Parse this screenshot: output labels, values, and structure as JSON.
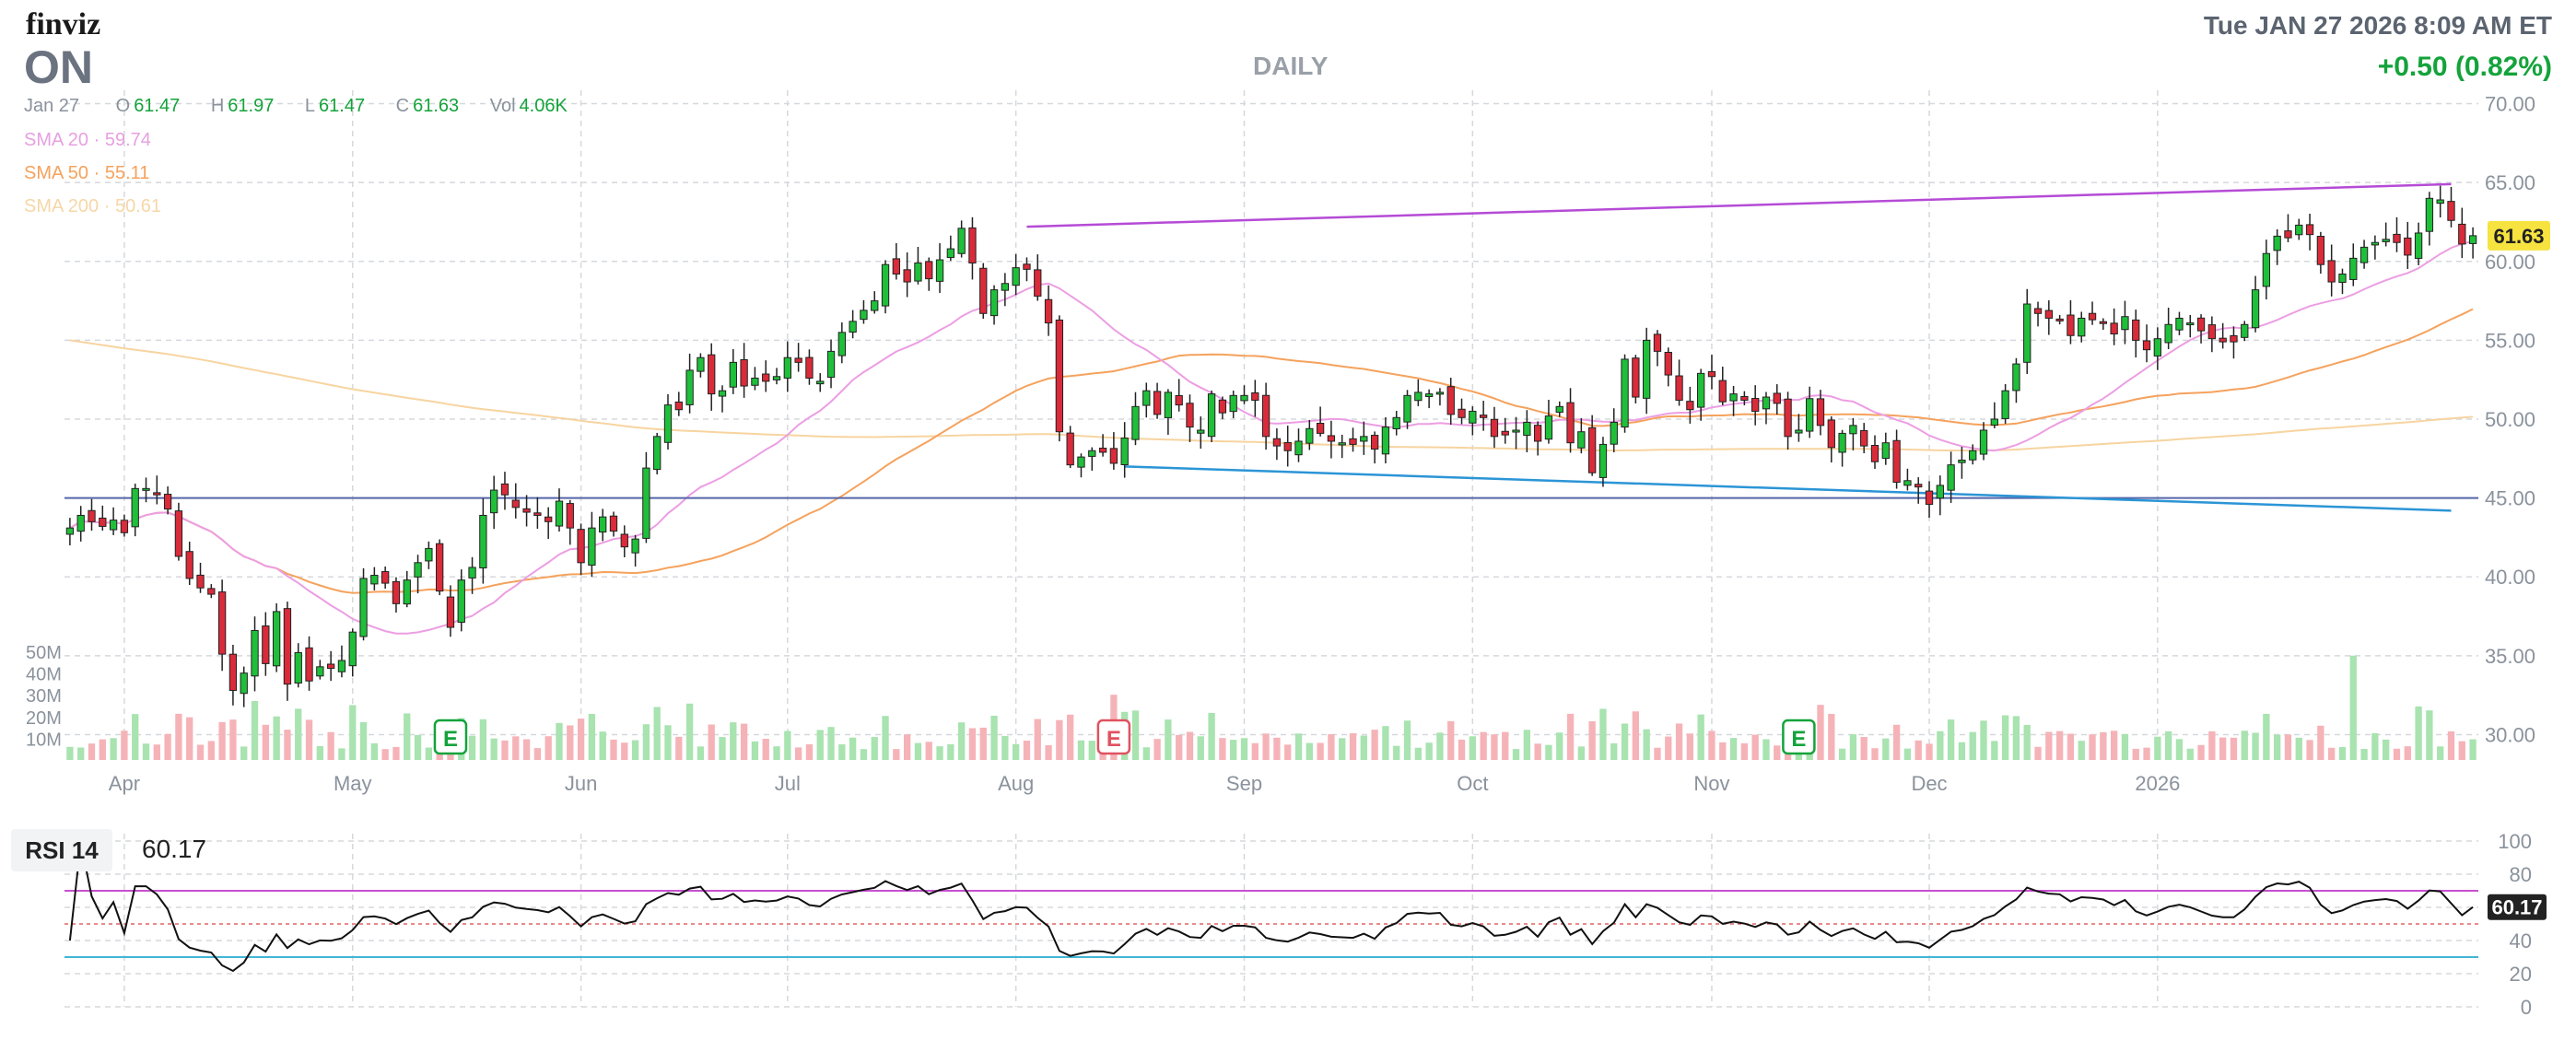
{
  "header": {
    "logo": "finviz",
    "ticker": "ON",
    "period": "DAILY",
    "datetime": "Tue JAN 27 2026 8:09 AM ET",
    "change": "+0.50 (0.82%)"
  },
  "ohlc": {
    "date": "Jan 27",
    "open_key": "O",
    "open": "61.47",
    "high_key": "H",
    "high": "61.97",
    "low_key": "L",
    "low": "61.47",
    "close_key": "C",
    "close": "61.63",
    "vol_key": "Vol",
    "vol": "4.06K"
  },
  "sma_legend": [
    {
      "label": "SMA 20",
      "value": "59.74",
      "color": "#e6a0e0"
    },
    {
      "label": "SMA 50",
      "value": "55.11",
      "color": "#f5a25d"
    },
    {
      "label": "SMA 200",
      "value": "50.61",
      "color": "#f6d7a7"
    }
  ],
  "colors": {
    "up": "#1fbf3a",
    "down": "#d92b3a",
    "vol_up": "#a8e3b0",
    "vol_down": "#f5b3b8",
    "sma20": "#ec9ee3",
    "sma50": "#f5a25d",
    "sma200": "#f7d4a0",
    "res_line": "#b54bd6",
    "sup_line": "#2b95d6",
    "hline": "#5566aa",
    "grid": "#d5d8dc",
    "axis_text": "#8a929c",
    "price_tag": "#f6e340",
    "rsi_line": "#111111",
    "rsi_ob": "#c74fd1",
    "rsi_os": "#42b6d6",
    "rsi_mid": "#e06464",
    "earnings": "#14a33b",
    "earnings_red": "#e05260"
  },
  "chart_data": {
    "type": "candlestick",
    "price_axis": {
      "ylim": [
        28.8,
        70.5
      ],
      "ticks": [
        "70.00",
        "65.00",
        "60.00",
        "55.00",
        "50.00",
        "45.00",
        "40.00",
        "35.00",
        "30.00"
      ],
      "tick_values": [
        70,
        65,
        60,
        55,
        50,
        45,
        40,
        35,
        30
      ]
    },
    "volume_axis": {
      "labels": [
        "50M",
        "40M",
        "30M",
        "20M",
        "10M"
      ],
      "values": [
        50,
        40,
        30,
        20,
        10
      ],
      "max": 50
    },
    "x_axis": {
      "labels": [
        "Apr",
        "May",
        "Jun",
        "Jul",
        "Aug",
        "Sep",
        "Oct",
        "Nov",
        "Dec",
        "2026"
      ],
      "label_index": [
        5,
        26,
        47,
        66,
        87,
        108,
        129,
        151,
        171,
        192
      ]
    },
    "last_price_label": "61.63",
    "earnings": [
      {
        "index": 35,
        "label": "E",
        "tone": "green"
      },
      {
        "index": 96,
        "label": "E",
        "tone": "red"
      },
      {
        "index": 159,
        "label": "E",
        "tone": "green"
      }
    ],
    "trendlines": [
      {
        "name": "resistance",
        "from": [
          88,
          62.2
        ],
        "to": [
          219,
          64.9
        ]
      },
      {
        "name": "support",
        "from": [
          97,
          47.0
        ],
        "to": [
          219,
          44.2
        ]
      }
    ],
    "hline": {
      "value": 45.0
    },
    "closes": [
      43.1,
      43.9,
      43.5,
      43.2,
      43.6,
      42.8,
      45.6,
      45.6,
      45.2,
      44.3,
      41.3,
      39.9,
      39.3,
      38.9,
      35.1,
      32.8,
      33.9,
      36.6,
      34.5,
      37.8,
      33.2,
      35.2,
      33.4,
      34.3,
      34.2,
      34.7,
      36.5,
      39.9,
      40.1,
      39.6,
      38.3,
      39.8,
      40.9,
      41.8,
      39.1,
      36.8,
      39.8,
      40.6,
      43.9,
      45.5,
      45.2,
      44.4,
      44.1,
      43.9,
      43.5,
      44.8,
      43.1,
      40.9,
      43.1,
      43.8,
      42.9,
      41.9,
      42.4,
      46.9,
      48.9,
      50.9,
      50.6,
      53.1,
      53.9,
      51.6,
      51.8,
      53.6,
      52.1,
      52.6,
      52.4,
      52.7,
      53.9,
      53.6,
      52.6,
      52.4,
      54.3,
      55.5,
      56.2,
      56.9,
      57.5,
      59.8,
      59.2,
      58.7,
      59.9,
      58.9,
      60.1,
      60.8,
      62.1,
      59.9,
      56.7,
      58.2,
      58.6,
      59.6,
      59.5,
      57.8,
      56.1,
      49.2,
      47.1,
      47.6,
      48.0,
      47.9,
      47.2,
      48.8,
      50.8,
      51.8,
      50.3,
      51.7,
      50.9,
      49.5,
      49.3,
      51.6,
      50.4,
      51.5,
      51.5,
      51.2,
      48.9,
      48.3,
      48.0,
      48.6,
      49.4,
      49.1,
      48.6,
      48.5,
      48.4,
      48.9,
      48.1,
      49.5,
      50.1,
      51.5,
      51.7,
      51.6,
      51.7,
      50.3,
      50.1,
      50.5,
      50.1,
      48.9,
      49.0,
      49.3,
      49.8,
      48.6,
      50.2,
      50.8,
      48.5,
      49.2,
      46.6,
      48.4,
      49.8,
      53.8,
      51.4,
      55.0,
      54.3,
      52.8,
      51.2,
      50.6,
      52.9,
      52.7,
      51.1,
      51.6,
      51.2,
      50.5,
      51.4,
      51.0,
      48.9,
      49.3,
      51.3,
      49.6,
      48.2,
      49.1,
      49.6,
      48.3,
      47.3,
      48.5,
      46.0,
      46.1,
      45.7,
      44.6,
      45.8,
      47.1,
      47.4,
      48.0,
      49.3,
      50.0,
      51.8,
      53.5,
      57.3,
      56.7,
      56.4,
      56.3,
      55.3,
      56.4,
      56.3,
      56.1,
      55.4,
      56.5,
      55.0,
      54.4,
      55.1,
      56.0,
      56.4,
      56.1,
      55.6,
      55.1,
      54.9,
      54.9,
      56.0,
      58.2,
      60.5,
      61.6,
      61.5,
      62.3,
      61.7,
      59.8,
      58.7,
      59.2,
      60.2,
      60.9,
      61.2,
      61.4,
      61.2,
      60.4,
      61.8,
      64.0,
      63.9,
      62.6,
      61.1,
      61.63
    ],
    "candles_anchor_note": ""
  },
  "rsi": {
    "label": "RSI 14",
    "value": "60.17",
    "ylim": [
      0,
      100
    ],
    "ticks": [
      "100",
      "80",
      "60",
      "40",
      "20",
      "0"
    ],
    "tick_values": [
      100,
      80,
      60,
      40,
      20,
      0
    ],
    "overbought": 70,
    "oversold": 30,
    "mid": 50
  }
}
